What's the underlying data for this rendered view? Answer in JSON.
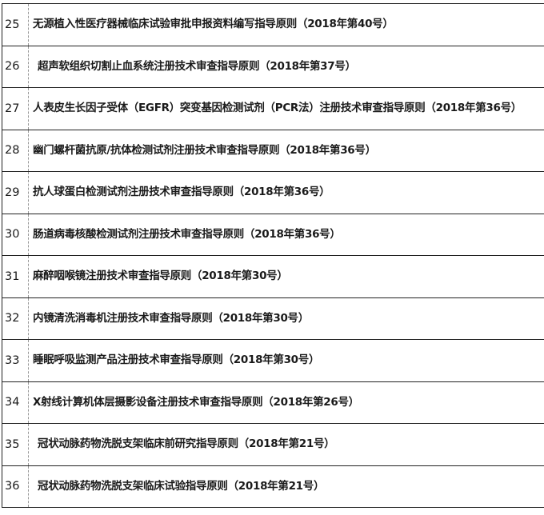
{
  "rows": [
    {
      "no": "25",
      "title": "无源植入性医疗器械临床试验审批申报资料编写指导原则（2018年第40号）"
    },
    {
      "no": "26",
      "title": "超声软组织切割止血系统注册技术审查指导原则（2018年第37号）"
    },
    {
      "no": "27",
      "title": "人表皮生长因子受体（EGFR）突变基因检测试剂（PCR法）注册技术审查指导原则（2018年第36号）"
    },
    {
      "no": "28",
      "title": "幽门螺杆菌抗原/抗体检测试剂注册技术审查指导原则（2018年第36号）"
    },
    {
      "no": "29",
      "title": "抗人球蛋白检测试剂注册技术审查指导原则（2018年第36号）"
    },
    {
      "no": "30",
      "title": "肠道病毒核酸检测试剂注册技术审查指导原则（2018年第36号）"
    },
    {
      "no": "31",
      "title": "麻醉咽喉镜注册技术审查指导原则（2018年第30号）"
    },
    {
      "no": "32",
      "title": "内镜清洗消毒机注册技术审查指导原则（2018年第30号）"
    },
    {
      "no": "33",
      "title": "睡眠呼吸监测产品注册技术审查指导原则（2018年第30号）"
    },
    {
      "no": "34",
      "title": "X射线计算机体层摄影设备注册技术审查指导原则（2018年第26号）"
    },
    {
      "no": "35",
      "title": "冠状动脉药物洗脱支架临床前研究指导原则（2018年第21号）"
    },
    {
      "no": "36",
      "title": "冠状动脉药物洗脱支架临床试验指导原则（2018年第21号）"
    }
  ]
}
